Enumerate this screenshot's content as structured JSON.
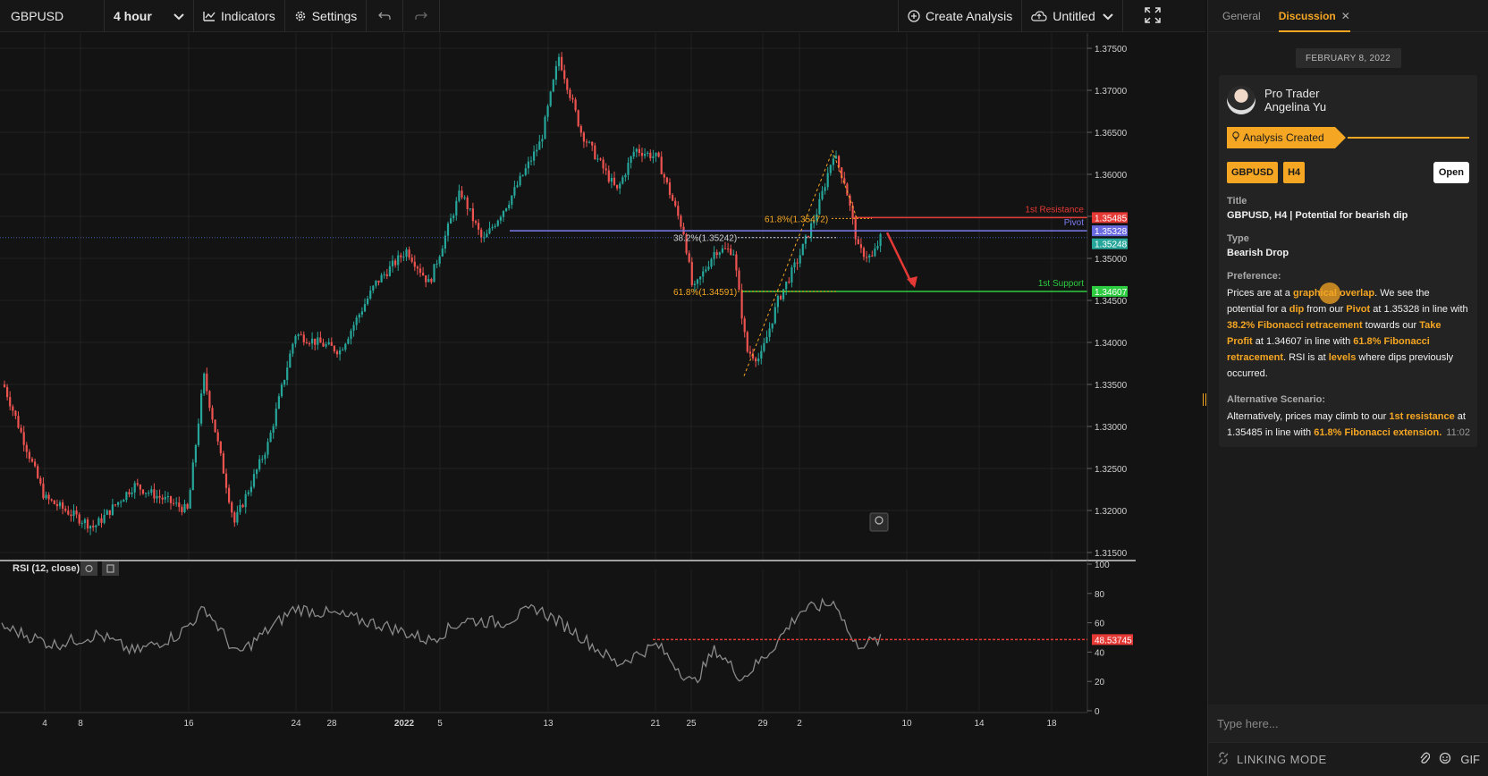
{
  "toolbar": {
    "symbol": "GBPUSD",
    "interval": "4 hour",
    "indicators": "Indicators",
    "settings": "Settings",
    "create_analysis": "Create Analysis",
    "layout_name": "Untitled"
  },
  "chart": {
    "price_ticks": [
      "1.37500",
      "1.37000",
      "1.36500",
      "1.36000",
      "1.35500",
      "1.35000",
      "1.34500",
      "1.34000",
      "1.33500",
      "1.33000",
      "1.32500",
      "1.32000",
      "1.31500"
    ],
    "date_ticks": [
      "4",
      "8",
      "16",
      "24",
      "28",
      "2022",
      "5",
      "13",
      "21",
      "25",
      "29",
      "2",
      "10",
      "14",
      "18"
    ],
    "levels": {
      "resistance_label": "1st Resistance",
      "resistance_price": "1.35485",
      "pivot_label": "Pivot",
      "pivot_price": "1.35328",
      "current_price": "1.35248",
      "support_label": "1st Support",
      "support_price": "1.34607"
    },
    "fib_labels": {
      "fib_618_top": "61.8%(1.35472)",
      "fib_382": "38.2%(1.35242)",
      "fib_618_low": "61.8%(1.34591)"
    },
    "colors": {
      "bull": "#26a69a",
      "bear": "#ef5350",
      "resistance": "#e53935",
      "pivot": "#7b7bf0",
      "support": "#2ecc40",
      "fib": "#f5a623"
    }
  },
  "rsi": {
    "label": "RSI (12, close)",
    "ticks": [
      "100",
      "80",
      "60",
      "40",
      "20",
      "0"
    ],
    "value": "48.53745"
  },
  "panel": {
    "tab_general": "General",
    "tab_discussion": "Discussion",
    "date": "FEBRUARY 8, 2022",
    "author_role": "Pro Trader",
    "author_name": "Angelina Yu",
    "banner": "Analysis Created",
    "badge_symbol": "GBPUSD",
    "badge_interval": "H4",
    "open_button": "Open",
    "title_label": "Title",
    "title_value": "GBPUSD, H4 | Potential for bearish dip",
    "type_label": "Type",
    "type_value": "Bearish Drop",
    "preference_label": "Preference:",
    "pref": {
      "p1": "Prices are at a ",
      "h1": "graphical overlap",
      "p2": ". We see the potential for a ",
      "h2": "dip",
      "p3": " from our ",
      "h3": "Pivot",
      "p4": " at 1.35328 in line with ",
      "h4": "38.2% Fibonacci retracement",
      "p5": " towards our ",
      "h5": "Take Profit",
      "p6": " at 1.34607 in line with ",
      "h6": "61.8% Fibonacci retracement",
      "p7": ". RSI is at ",
      "h7": "levels",
      "p8": " where dips previously occurred."
    },
    "alt_label": "Alternative Scenario:",
    "alt": {
      "p1": "Alternatively, prices may climb to our ",
      "h1": "1st resistance",
      "p2": " at 1.35485 in line with ",
      "h2": "61.8% Fibonacci extension."
    },
    "time": "11:02",
    "input_placeholder": "Type here...",
    "linking_mode": "LINKING MODE",
    "gif": "GIF"
  }
}
